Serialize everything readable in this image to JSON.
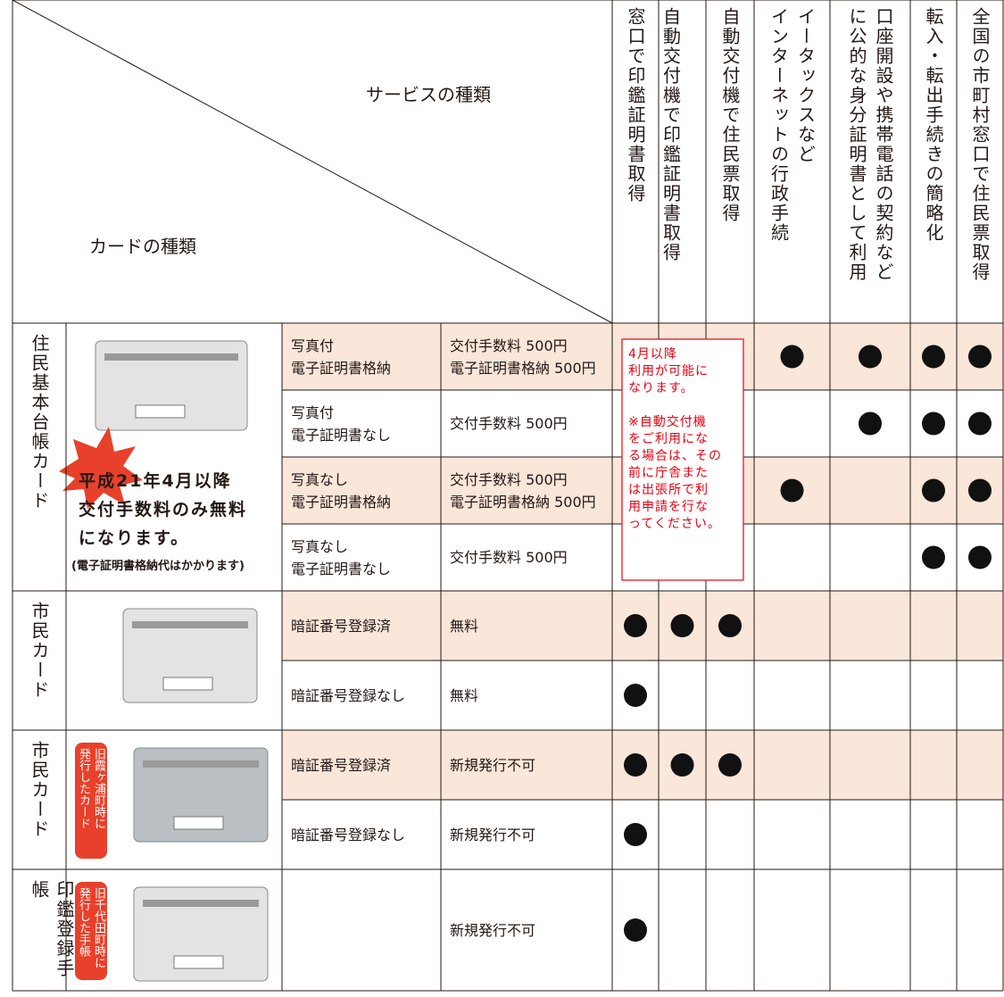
{
  "header": {
    "service_label": "サービスの種類",
    "card_label": "カードの種類",
    "services": [
      [
        "窓口で印鑑証明書取得"
      ],
      [
        "自動交付機で印鑑証明書取得"
      ],
      [
        "自動交付機で住民票取得"
      ],
      [
        "イータックスなど",
        "インターネットの行政手続"
      ],
      [
        "口座開設や携帯電話の契約など",
        "に公的な身分証明書として利用"
      ],
      [
        "転入・転出手続きの簡略化"
      ],
      [
        "全国の市町村窓口で住民票取得"
      ]
    ]
  },
  "groups": [
    {
      "label": "住民基本台帳カード",
      "rows": [
        {
          "type": [
            "写真付",
            "電子証明書格納"
          ],
          "fee": [
            "交付手数料 500円",
            "電子証明書格納 500円"
          ],
          "available": [
            false,
            false,
            false,
            true,
            true,
            true,
            true
          ],
          "highlight": true
        },
        {
          "type": [
            "写真付",
            "電子証明書なし"
          ],
          "fee": [
            "交付手数料 500円"
          ],
          "available": [
            false,
            false,
            false,
            false,
            true,
            true,
            true
          ],
          "highlight": false
        },
        {
          "type": [
            "写真なし",
            "電子証明書格納"
          ],
          "fee": [
            "交付手数料 500円",
            "電子証明書格納 500円"
          ],
          "available": [
            false,
            false,
            false,
            true,
            false,
            true,
            true
          ],
          "highlight": true
        },
        {
          "type": [
            "写真なし",
            "電子証明書なし"
          ],
          "fee": [
            "交付手数料 500円"
          ],
          "available": [
            false,
            false,
            false,
            false,
            false,
            true,
            true
          ],
          "highlight": false
        }
      ]
    },
    {
      "label": "市民カード",
      "rows": [
        {
          "type": [
            "暗証番号登録済"
          ],
          "fee": [
            "無料"
          ],
          "available": [
            true,
            true,
            true,
            false,
            false,
            false,
            false
          ],
          "highlight": true
        },
        {
          "type": [
            "暗証番号登録なし"
          ],
          "fee": [
            "無料"
          ],
          "available": [
            true,
            false,
            false,
            false,
            false,
            false,
            false
          ],
          "highlight": false
        }
      ]
    },
    {
      "label": "市民カード",
      "badge": [
        "旧霞ヶ浦町時に",
        "発行したカード"
      ],
      "rows": [
        {
          "type": [
            "暗証番号登録済"
          ],
          "fee": [
            "新規発行不可"
          ],
          "available": [
            true,
            true,
            true,
            false,
            false,
            false,
            false
          ],
          "highlight": true
        },
        {
          "type": [
            "暗証番号登録なし"
          ],
          "fee": [
            "新規発行不可"
          ],
          "available": [
            true,
            false,
            false,
            false,
            false,
            false,
            false
          ],
          "highlight": false
        }
      ]
    },
    {
      "label": "印鑑登録手帳",
      "badge": [
        "旧千代田町時に",
        "発行した手帳"
      ],
      "rows": [
        {
          "type": [],
          "fee": [
            "新規発行不可"
          ],
          "available": [
            true,
            false,
            false,
            false,
            false,
            false,
            false
          ],
          "highlight": false
        }
      ]
    }
  ],
  "card_note": {
    "lines": [
      "平成21年4月以降",
      "交付手数料のみ無料",
      "になります。"
    ],
    "small": "(電子証明書格納代はかかります)"
  },
  "notice": [
    [
      "4月以降",
      "利用が可能に",
      "なります。"
    ],
    [
      "※自動交付機",
      "をご利用にな",
      "る場合は、その",
      "前に庁舎また",
      "は出張所で利",
      "用申請を行な",
      "ってください。"
    ]
  ]
}
